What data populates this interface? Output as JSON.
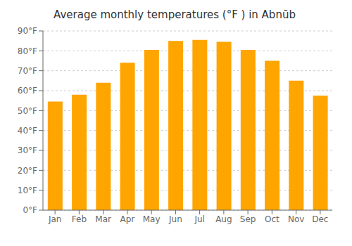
{
  "chart_data": {
    "type": "bar",
    "title": "Average monthly temperatures (°F ) in Abnūb",
    "categories": [
      "Jan",
      "Feb",
      "Mar",
      "Apr",
      "May",
      "Jun",
      "Jul",
      "Aug",
      "Sep",
      "Oct",
      "Nov",
      "Dec"
    ],
    "values": [
      54.5,
      58.0,
      64.0,
      74.0,
      80.5,
      85.0,
      85.5,
      84.5,
      80.5,
      75.0,
      65.0,
      57.5
    ],
    "color": "#FFA500",
    "ylim": [
      0,
      90
    ],
    "yticks": [
      {
        "value": 0,
        "label": "0°F"
      },
      {
        "value": 10,
        "label": "10°F"
      },
      {
        "value": 20,
        "label": "20°F"
      },
      {
        "value": 30,
        "label": "30°F"
      },
      {
        "value": 40,
        "label": "40°F"
      },
      {
        "value": 50,
        "label": "50°F"
      },
      {
        "value": 60,
        "label": "60°F"
      },
      {
        "value": 70,
        "label": "70°F"
      },
      {
        "value": 80,
        "label": "80°F"
      },
      {
        "value": 90,
        "label": "90°F"
      }
    ],
    "grid": true
  }
}
